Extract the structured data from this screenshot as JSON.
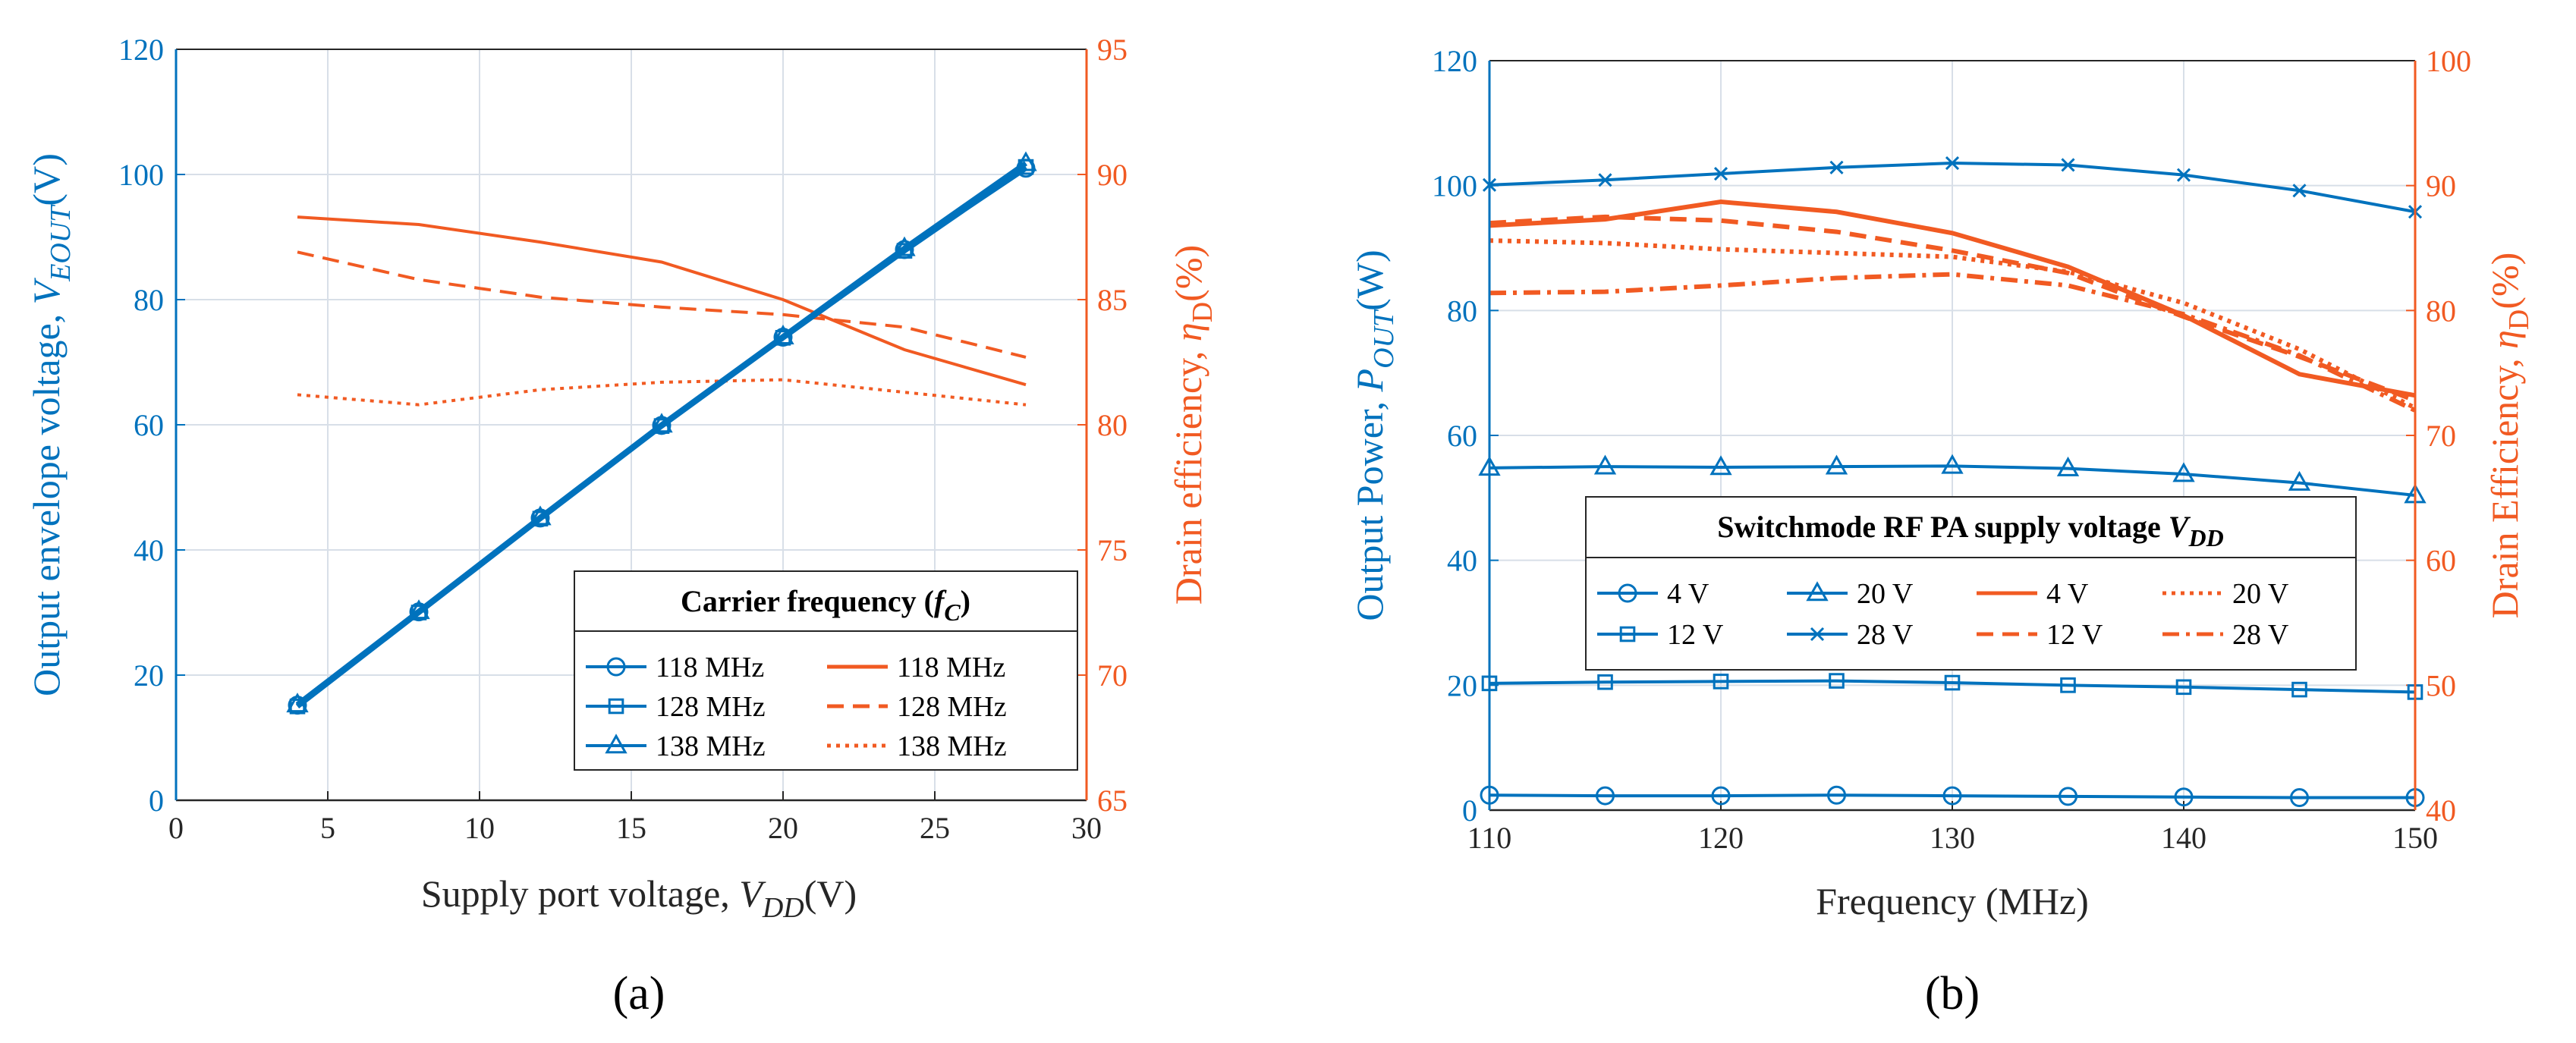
{
  "colors": {
    "blue": "#0072BD",
    "orange": "#F15A22",
    "grid": "#d8dfe8"
  },
  "chart_data": [
    {
      "type": "line",
      "panel_label": "(a)",
      "xlabel": "Supply port voltage,",
      "xlabel_sym": "V",
      "xlabel_sub": "DD",
      "xlabel_unit": "(V)",
      "ylabel_left": "Output envelope voltage,",
      "ylabel_left_sym": "V",
      "ylabel_left_sub": "EOUT",
      "ylabel_left_unit": "(V)",
      "ylabel_right": "Drain efficiency,",
      "ylabel_right_sym": "η",
      "ylabel_right_sub": "D",
      "ylabel_right_unit": "(%)",
      "xlim": [
        0,
        30
      ],
      "xticks": [
        0,
        5,
        10,
        15,
        20,
        25,
        30
      ],
      "ylim_left": [
        0,
        120
      ],
      "yticks_left": [
        0,
        20,
        40,
        60,
        80,
        100,
        120
      ],
      "ylim_right": [
        65,
        95
      ],
      "yticks_right": [
        65,
        70,
        75,
        80,
        85,
        90,
        95
      ],
      "x": [
        4,
        8,
        12,
        16,
        20,
        24,
        28
      ],
      "series_left": [
        {
          "name": "118 MHz",
          "marker": "circle",
          "values": [
            15.2,
            30.1,
            45.1,
            59.9,
            74.0,
            88.0,
            101.0
          ]
        },
        {
          "name": "128 MHz",
          "marker": "square",
          "values": [
            15.0,
            30.0,
            45.0,
            59.8,
            73.9,
            87.8,
            101.2
          ]
        },
        {
          "name": "138 MHz",
          "marker": "triangle",
          "values": [
            15.3,
            30.2,
            45.2,
            60.0,
            74.1,
            88.2,
            101.8
          ]
        }
      ],
      "series_right": [
        {
          "name": "118 MHz",
          "dash": "solid",
          "values": [
            88.3,
            88.0,
            87.3,
            86.5,
            85.0,
            83.0,
            81.6
          ]
        },
        {
          "name": "128 MHz",
          "dash": "dashed",
          "values": [
            86.9,
            85.8,
            85.1,
            84.7,
            84.4,
            83.9,
            82.7
          ]
        },
        {
          "name": "138 MHz",
          "dash": "dotted",
          "values": [
            81.2,
            80.8,
            81.4,
            81.7,
            81.8,
            81.3,
            80.8
          ]
        }
      ],
      "legend": {
        "title": "Carrier frequency",
        "title_sym": "f",
        "title_sub": "C",
        "location": "bottom-right"
      }
    },
    {
      "type": "line",
      "panel_label": "(b)",
      "xlabel": "Frequency (MHz)",
      "ylabel_left": "Output Power,",
      "ylabel_left_sym": "P",
      "ylabel_left_sub": "OUT",
      "ylabel_left_unit": "(W)",
      "ylabel_right": "Drain Efficiency,",
      "ylabel_right_sym": "η",
      "ylabel_right_sub": "D",
      "ylabel_right_unit": "(%)",
      "xlim": [
        110,
        150
      ],
      "xticks": [
        110,
        120,
        130,
        140,
        150
      ],
      "ylim_left": [
        0,
        120
      ],
      "yticks_left": [
        0,
        20,
        40,
        60,
        80,
        100,
        120
      ],
      "ylim_right": [
        40,
        100
      ],
      "yticks_right": [
        40,
        50,
        60,
        70,
        80,
        90,
        100
      ],
      "x": [
        110,
        115,
        120,
        125,
        130,
        135,
        140,
        145,
        150
      ],
      "series_left": [
        {
          "name": "4 V",
          "marker": "circle",
          "values": [
            2.4,
            2.3,
            2.3,
            2.4,
            2.3,
            2.2,
            2.1,
            2.0,
            2.0
          ]
        },
        {
          "name": "12 V",
          "marker": "square",
          "values": [
            20.3,
            20.5,
            20.6,
            20.7,
            20.4,
            20.0,
            19.7,
            19.3,
            18.9
          ]
        },
        {
          "name": "20 V",
          "marker": "triangle",
          "values": [
            54.8,
            55.0,
            54.9,
            55.0,
            55.1,
            54.7,
            53.8,
            52.4,
            50.4
          ]
        },
        {
          "name": "28 V",
          "marker": "x",
          "values": [
            100.1,
            100.9,
            101.9,
            102.9,
            103.6,
            103.3,
            101.7,
            99.2,
            95.8
          ]
        }
      ],
      "series_right": [
        {
          "name": "4 V",
          "dash": "solid",
          "values": [
            86.8,
            87.3,
            88.7,
            87.9,
            86.2,
            83.5,
            79.6,
            74.9,
            73.2
          ]
        },
        {
          "name": "20 V",
          "dash": "dotted",
          "values": [
            85.6,
            85.4,
            84.9,
            84.6,
            84.3,
            83.1,
            80.6,
            76.9,
            72.2
          ]
        },
        {
          "name": "12 V",
          "dash": "dashed",
          "values": [
            87.0,
            87.5,
            87.2,
            86.3,
            84.8,
            83.0,
            79.5,
            76.3,
            72.8
          ]
        },
        {
          "name": "28 V",
          "dash": "dashdot",
          "values": [
            81.4,
            81.5,
            82.0,
            82.6,
            82.9,
            82.0,
            79.7,
            76.4,
            72.0
          ]
        }
      ],
      "legend": {
        "title": "Switchmode RF PA supply voltage",
        "title_sym": "V",
        "title_sub": "DD",
        "location": "center-right"
      }
    }
  ]
}
